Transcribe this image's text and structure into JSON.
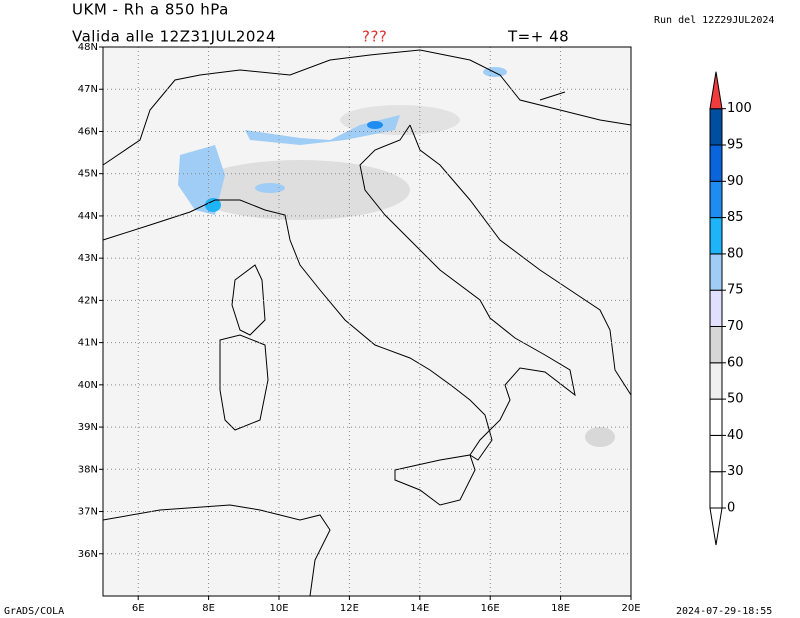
{
  "header": {
    "title": "UKM - Rh a 850 hPa",
    "valid": "Valida alle 12Z31JUL2024",
    "flag": "???",
    "forecast": "T=+ 48",
    "run": "Run del 12Z29JUL2024"
  },
  "map": {
    "lon_range": [
      5,
      20
    ],
    "lat_range": [
      35,
      48
    ],
    "grid": true,
    "lon_ticks": [
      {
        "value": 6,
        "label": "6E"
      },
      {
        "value": 8,
        "label": "8E"
      },
      {
        "value": 10,
        "label": "10E"
      },
      {
        "value": 12,
        "label": "12E"
      },
      {
        "value": 14,
        "label": "14E"
      },
      {
        "value": 16,
        "label": "16E"
      },
      {
        "value": 18,
        "label": "18E"
      },
      {
        "value": 20,
        "label": "20E"
      }
    ],
    "lat_ticks": [
      {
        "value": 48,
        "label": "48N"
      },
      {
        "value": 47,
        "label": "47N"
      },
      {
        "value": 46,
        "label": "46N"
      },
      {
        "value": 45,
        "label": "45N"
      },
      {
        "value": 44,
        "label": "44N"
      },
      {
        "value": 43,
        "label": "43N"
      },
      {
        "value": 42,
        "label": "42N"
      },
      {
        "value": 41,
        "label": "41N"
      },
      {
        "value": 40,
        "label": "40N"
      },
      {
        "value": 39,
        "label": "39N"
      },
      {
        "value": 38,
        "label": "38N"
      },
      {
        "value": 37,
        "label": "37N"
      },
      {
        "value": 36,
        "label": "36N"
      }
    ]
  },
  "colorbar": {
    "levels": [
      0,
      30,
      40,
      50,
      60,
      70,
      75,
      80,
      85,
      90,
      95,
      100
    ],
    "colors": [
      "#ffffff",
      "#ffffff",
      "#ffffff",
      "#ffffff",
      "#f0f0f0",
      "#d6d6d6",
      "#e1e1ff",
      "#a0cdf5",
      "#1eb4fa",
      "#1e8cf0",
      "#0a64dc",
      "#004ea0",
      "#f03c3c"
    ]
  },
  "footer": {
    "left": "GrADS/COLA",
    "right": "2024-07-29-18:55"
  }
}
